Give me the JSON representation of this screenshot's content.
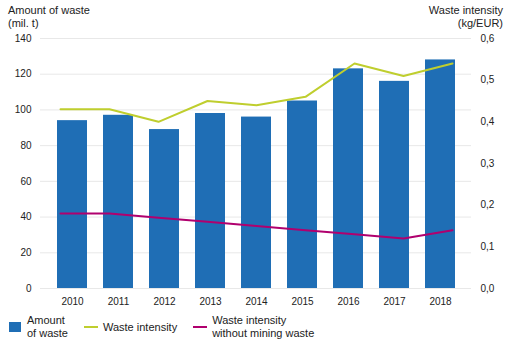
{
  "chart_data": {
    "type": "bar",
    "ylabel": "Amount of waste\n(mil. t)",
    "y2label": "Waste intensity\n(kg/EUR)",
    "categories": [
      "2010",
      "2011",
      "2012",
      "2013",
      "2014",
      "2015",
      "2016",
      "2017",
      "2018"
    ],
    "series": [
      {
        "name": "Amount\nof waste",
        "type": "bar",
        "color": "#1F6EB5",
        "values": [
          94,
          97,
          89,
          98,
          96,
          105,
          123,
          116,
          128
        ]
      },
      {
        "name": "Waste intensity",
        "type": "line",
        "axis": "y2",
        "color": "#BFCE2E",
        "values": [
          0.43,
          0.43,
          0.4,
          0.45,
          0.44,
          0.46,
          0.54,
          0.51,
          0.54
        ]
      },
      {
        "name": "Waste intensity\nwithout mining waste",
        "type": "line",
        "axis": "y2",
        "color": "#B0006E",
        "values": [
          0.18,
          0.18,
          0.17,
          0.16,
          0.15,
          0.14,
          0.13,
          0.12,
          0.14
        ]
      }
    ],
    "ylim": [
      0,
      140
    ],
    "yticks": [
      0,
      20,
      40,
      60,
      80,
      100,
      120,
      140
    ],
    "y2lim": [
      0.0,
      0.6
    ],
    "y2ticks": [
      {
        "value": 0.0,
        "label": "0,0"
      },
      {
        "value": 0.1,
        "label": "0,1"
      },
      {
        "value": 0.2,
        "label": "0,2"
      },
      {
        "value": 0.3,
        "label": "0,3"
      },
      {
        "value": 0.4,
        "label": "0,4"
      },
      {
        "value": 0.5,
        "label": "0,5"
      },
      {
        "value": 0.6,
        "label": "0,6"
      }
    ],
    "grid": true,
    "legend": "bottom left"
  }
}
